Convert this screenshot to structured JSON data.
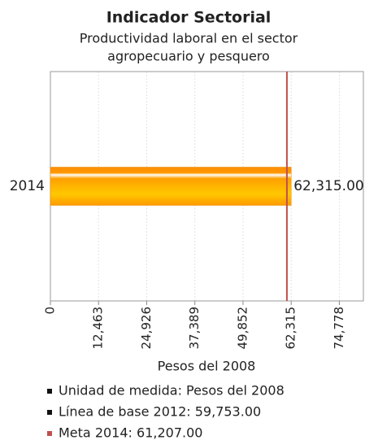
{
  "chart_data": {
    "type": "bar",
    "orientation": "horizontal",
    "title": "Indicador Sectorial",
    "subtitle": [
      "Productividad laboral en el sector",
      "agropecuario y pesquero"
    ],
    "categories": [
      "2014"
    ],
    "values": [
      62315
    ],
    "value_labels": [
      "62,315.00"
    ],
    "color": "#ffa800",
    "xlim": [
      0,
      81000
    ],
    "xticks": [
      0,
      {
        "value": 12463,
        "label": "12,463"
      },
      {
        "value": 24926,
        "label": "24,926"
      },
      {
        "value": 37389,
        "label": "37,389"
      },
      {
        "value": 49852,
        "label": "49,852"
      },
      {
        "value": 62315,
        "label": "62,315"
      },
      {
        "value": 74778,
        "label": "74,778"
      }
    ],
    "x_label": "Pesos del 2008",
    "grid": true,
    "target_line": {
      "value": 61207,
      "color": "#c0504d"
    },
    "legend": [
      {
        "label": "Unidad de medida: Pesos del 2008",
        "color": "#111111"
      },
      {
        "label": "Línea de base 2012: 59,753.00",
        "color": "#111111"
      },
      {
        "label": "Meta 2014: 61,207.00",
        "color": "#c0504d"
      }
    ]
  }
}
